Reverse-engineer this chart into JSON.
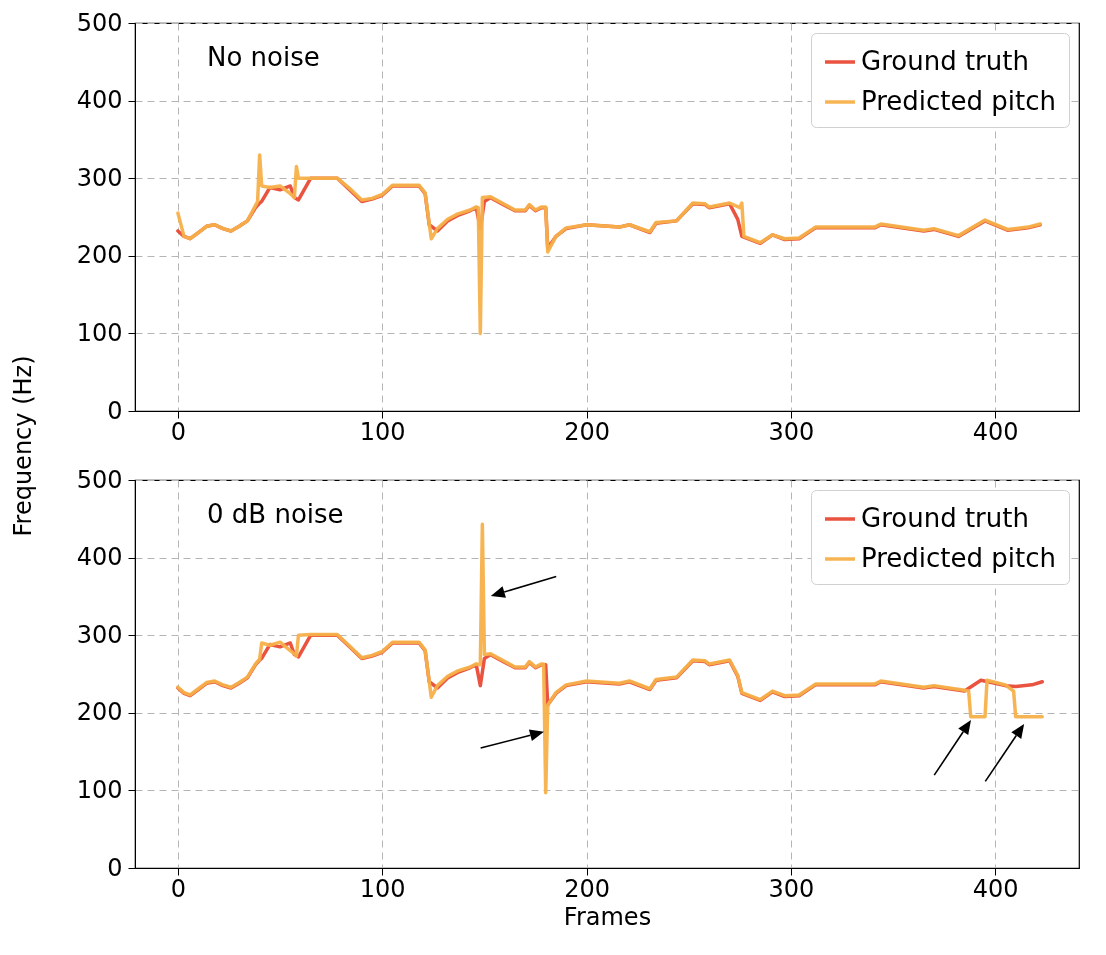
{
  "chart_data": [
    {
      "type": "line",
      "title": "No noise",
      "ylabel": "Frequency (Hz)",
      "xlim": [
        -21,
        441
      ],
      "xticks": [
        0,
        100,
        200,
        300,
        400
      ],
      "ylim": [
        0,
        500
      ],
      "yticks": [
        0,
        100,
        200,
        300,
        400,
        500
      ],
      "grid": true,
      "legend": "top right",
      "series": [
        {
          "name": "Ground truth",
          "color": "#e84a35",
          "x": [
            0,
            3,
            6,
            10,
            14,
            18,
            22,
            26,
            30,
            34,
            38,
            40,
            41,
            45,
            50,
            55,
            57,
            59,
            65,
            72,
            78,
            84,
            90,
            95,
            100,
            105,
            112,
            118,
            121,
            123,
            127,
            132,
            137,
            143,
            146,
            148,
            150,
            153,
            160,
            165,
            170,
            172,
            175,
            178,
            180,
            181,
            185,
            190,
            200,
            216,
            221,
            231,
            234,
            244,
            252,
            258,
            260,
            270,
            274,
            276,
            285,
            291,
            297,
            304,
            312,
            341,
            344,
            365,
            370,
            382,
            395,
            406,
            416,
            422
          ],
          "values": [
            232,
            225,
            222,
            230,
            238,
            240,
            235,
            232,
            238,
            245,
            262,
            268,
            270,
            288,
            285,
            290,
            275,
            272,
            300,
            300,
            300,
            285,
            270,
            273,
            278,
            290,
            290,
            290,
            280,
            240,
            232,
            245,
            252,
            258,
            262,
            235,
            270,
            275,
            265,
            258,
            258,
            265,
            258,
            262,
            262,
            210,
            225,
            235,
            240,
            237,
            240,
            230,
            242,
            245,
            267,
            266,
            262,
            267,
            247,
            225,
            216,
            227,
            221,
            222,
            236,
            236,
            240,
            232,
            234,
            225,
            245,
            233,
            236,
            240
          ]
        },
        {
          "name": "Predicted pitch",
          "color": "#f7b04a",
          "x": [
            0,
            3,
            6,
            10,
            14,
            18,
            22,
            26,
            30,
            34,
            38,
            39,
            40,
            41,
            45,
            50,
            55,
            57,
            58,
            59,
            65,
            72,
            78,
            84,
            90,
            95,
            100,
            105,
            112,
            118,
            121,
            124,
            127,
            132,
            137,
            143,
            146,
            147,
            148,
            149,
            153,
            160,
            165,
            170,
            172,
            175,
            178,
            180,
            181,
            185,
            190,
            200,
            216,
            221,
            231,
            234,
            244,
            252,
            258,
            260,
            270,
            275,
            276,
            277,
            285,
            291,
            297,
            304,
            312,
            341,
            344,
            365,
            370,
            382,
            395,
            406,
            416,
            422
          ],
          "values": [
            255,
            225,
            222,
            230,
            238,
            240,
            235,
            232,
            238,
            245,
            265,
            270,
            330,
            290,
            288,
            290,
            280,
            275,
            315,
            300,
            300,
            300,
            300,
            287,
            272,
            274,
            279,
            291,
            291,
            291,
            281,
            222,
            235,
            247,
            254,
            259,
            263,
            262,
            100,
            275,
            276,
            266,
            259,
            259,
            266,
            259,
            263,
            263,
            205,
            225,
            236,
            240,
            237,
            240,
            231,
            243,
            245,
            268,
            267,
            263,
            268,
            262,
            268,
            225,
            217,
            227,
            222,
            223,
            237,
            237,
            241,
            233,
            235,
            226,
            246,
            234,
            237,
            241
          ]
        }
      ]
    },
    {
      "type": "line",
      "title": "0 dB noise",
      "xlabel": "Frames",
      "xlim": [
        -21,
        441
      ],
      "xticks": [
        0,
        100,
        200,
        300,
        400
      ],
      "ylim": [
        0,
        500
      ],
      "yticks": [
        0,
        100,
        200,
        300,
        400,
        500
      ],
      "grid": true,
      "legend": "top right",
      "series": [
        {
          "name": "Ground truth",
          "color": "#e84a35",
          "x": [
            0,
            3,
            6,
            10,
            14,
            18,
            22,
            26,
            30,
            34,
            38,
            40,
            41,
            45,
            50,
            55,
            57,
            59,
            65,
            72,
            78,
            84,
            90,
            95,
            100,
            105,
            112,
            118,
            121,
            123,
            127,
            132,
            137,
            143,
            146,
            148,
            150,
            153,
            160,
            165,
            170,
            172,
            175,
            178,
            180,
            181,
            185,
            190,
            200,
            216,
            221,
            231,
            234,
            244,
            252,
            258,
            260,
            270,
            274,
            276,
            285,
            291,
            297,
            304,
            312,
            341,
            344,
            365,
            370,
            385,
            393,
            405,
            410,
            418,
            423
          ],
          "values": [
            232,
            225,
            222,
            230,
            238,
            240,
            235,
            232,
            238,
            245,
            262,
            268,
            270,
            288,
            285,
            290,
            275,
            272,
            300,
            300,
            300,
            285,
            270,
            273,
            278,
            290,
            290,
            290,
            280,
            240,
            232,
            245,
            252,
            258,
            262,
            235,
            270,
            275,
            265,
            258,
            258,
            265,
            258,
            262,
            262,
            210,
            225,
            235,
            240,
            237,
            240,
            230,
            242,
            245,
            267,
            266,
            262,
            267,
            247,
            225,
            216,
            227,
            221,
            222,
            236,
            236,
            240,
            232,
            234,
            228,
            242,
            235,
            234,
            236,
            240
          ]
        },
        {
          "name": "Predicted pitch",
          "color": "#f7b04a",
          "x": [
            0,
            3,
            6,
            10,
            14,
            18,
            22,
            26,
            30,
            34,
            38,
            40,
            41,
            45,
            50,
            55,
            57,
            58,
            59,
            65,
            72,
            78,
            84,
            90,
            95,
            100,
            105,
            112,
            118,
            121,
            124,
            127,
            132,
            137,
            143,
            146,
            148,
            149,
            150,
            153,
            160,
            165,
            170,
            172,
            175,
            178,
            179,
            180,
            181,
            185,
            190,
            200,
            216,
            221,
            231,
            234,
            244,
            252,
            258,
            260,
            270,
            274,
            276,
            285,
            291,
            297,
            304,
            312,
            341,
            344,
            365,
            370,
            385,
            387,
            388,
            395,
            396,
            405,
            409,
            410,
            423
          ],
          "values": [
            233,
            226,
            223,
            231,
            239,
            241,
            236,
            233,
            239,
            246,
            263,
            269,
            290,
            287,
            291,
            280,
            276,
            273,
            300,
            301,
            301,
            301,
            286,
            271,
            274,
            279,
            291,
            291,
            291,
            281,
            220,
            235,
            247,
            254,
            259,
            263,
            262,
            443,
            275,
            276,
            266,
            259,
            259,
            266,
            259,
            263,
            263,
            97,
            210,
            226,
            236,
            241,
            238,
            241,
            231,
            243,
            246,
            268,
            267,
            263,
            268,
            248,
            226,
            217,
            228,
            222,
            223,
            237,
            237,
            241,
            233,
            235,
            229,
            228,
            195,
            195,
            242,
            236,
            228,
            195,
            195
          ]
        }
      ]
    }
  ]
}
